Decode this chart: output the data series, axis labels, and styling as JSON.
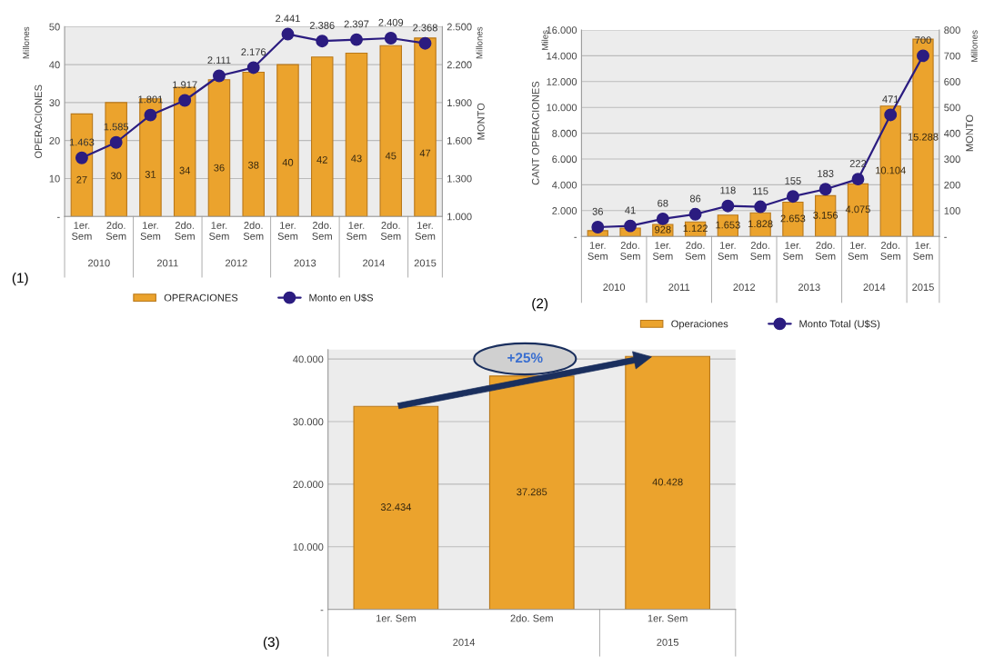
{
  "chart_data": [
    {
      "type": "bar",
      "ylabel": "OPERACIONES",
      "y2label": "MONTO",
      "legend": "bottom",
      "grid": "y",
      "categories": [
        "1er. Sem",
        "2do. Sem",
        "1er. Sem",
        "2do. Sem",
        "1er. Sem",
        "2do. Sem",
        "1er. Sem",
        "2do. Sem",
        "1er. Sem",
        "2do. Sem",
        "1er. Sem"
      ],
      "series": [
        {
          "name": "OPERACIONES",
          "color": "#eba32d",
          "values": [
            27,
            30,
            31,
            34,
            36,
            38,
            40,
            42,
            43,
            45,
            47
          ],
          "value_labels": [
            "27",
            "30",
            "31",
            "34",
            "36",
            "38",
            "40",
            "42",
            "43",
            "45",
            "47"
          ]
        },
        {
          "name": "Monto en U$S",
          "type": "line",
          "axis": "y2",
          "marker": "circle",
          "color": "#2b1c80",
          "values": [
            1463,
            1585,
            1801,
            1917,
            2111,
            2176,
            2441,
            2386,
            2397,
            2409,
            2368
          ],
          "value_labels": [
            "1.463",
            "1.585",
            "1.801",
            "1.917",
            "2.111",
            "2.176",
            "2.441",
            "2.386",
            "2.397",
            "2.409",
            "2.368"
          ]
        }
      ],
      "ylim": [
        0,
        50
      ],
      "yticks": [
        {
          "value": 0,
          "label": "-"
        },
        10,
        20,
        30,
        40,
        50
      ],
      "y2lim": [
        1000,
        2500
      ],
      "y2ticks": [
        {
          "value": 1000,
          "label": "1.000"
        },
        {
          "value": 1300,
          "label": "1.300"
        },
        {
          "value": 1600,
          "label": "1.600"
        },
        {
          "value": 1900,
          "label": "1.900"
        },
        {
          "value": 2200,
          "label": "2.200"
        },
        {
          "value": 2500,
          "label": "2.500"
        }
      ],
      "annotations": [
        "2010",
        "2011",
        "2012",
        "2013",
        "2014",
        "2015",
        "Millones",
        "Millones",
        "(1)"
      ]
    },
    {
      "type": "bar",
      "ylabel": "CANT OPERACIONES",
      "y2label": "MONTO",
      "legend": "bottom",
      "grid": "y",
      "categories": [
        "1er. Sem",
        "2do. Sem",
        "1er. Sem",
        "2do. Sem",
        "1er. Sem",
        "2do. Sem",
        "1er. Sem",
        "2do. Sem",
        "1er. Sem",
        "2do. Sem",
        "1er. Sem"
      ],
      "series": [
        {
          "name": "Operaciones",
          "color": "#eba32d",
          "values": [
            450,
            650,
            928,
            1122,
            1653,
            1828,
            2653,
            3156,
            4075,
            10104,
            15288
          ],
          "value_labels": [
            null,
            null,
            "928",
            "1.122",
            "1.653",
            "1.828",
            "2.653",
            "3.156",
            "4.075",
            "10.104",
            "15.288"
          ]
        },
        {
          "name": "Monto Total (U$S)",
          "type": "line",
          "axis": "y2",
          "marker": "circle",
          "color": "#2b1c80",
          "values": [
            36,
            41,
            68,
            86,
            118,
            115,
            155,
            183,
            222,
            471,
            700
          ],
          "value_labels": [
            "36",
            "41",
            "68",
            "86",
            "118",
            "115",
            "155",
            "183",
            "222",
            "471",
            "700"
          ]
        }
      ],
      "ylim": [
        0,
        16000
      ],
      "yticks": [
        {
          "value": 0,
          "label": "-"
        },
        {
          "value": 2000,
          "label": "2.000"
        },
        {
          "value": 4000,
          "label": "4.000"
        },
        {
          "value": 6000,
          "label": "6.000"
        },
        {
          "value": 8000,
          "label": "8.000"
        },
        {
          "value": 10000,
          "label": "10.000"
        },
        {
          "value": 12000,
          "label": "12.000"
        },
        {
          "value": 14000,
          "label": "14.000"
        },
        {
          "value": 16000,
          "label": "16.000"
        }
      ],
      "y2lim": [
        0,
        800
      ],
      "y2ticks": [
        {
          "value": 0,
          "label": "-"
        },
        100,
        200,
        300,
        400,
        500,
        600,
        700,
        800
      ],
      "annotations": [
        "2010",
        "2011",
        "2012",
        "2013",
        "2014",
        "2015",
        "Miles",
        "Millones",
        "(2)"
      ]
    },
    {
      "type": "bar",
      "grid": "y",
      "categories": [
        "1er. Sem",
        "2do. Sem",
        "1er. Sem"
      ],
      "series": [
        {
          "color": "#eba32d",
          "values": [
            32434,
            37285,
            40428
          ],
          "value_labels": [
            "32.434",
            "37.285",
            "40.428"
          ]
        }
      ],
      "ylim": [
        0,
        41500
      ],
      "yticks": [
        {
          "value": 0,
          "label": "-"
        },
        {
          "value": 10000,
          "label": "10.000"
        },
        {
          "value": 20000,
          "label": "20.000"
        },
        {
          "value": 30000,
          "label": "30.000"
        },
        {
          "value": 40000,
          "label": "40.000"
        }
      ],
      "annotations": [
        "2014",
        "2015",
        "+25%",
        "(3)"
      ]
    }
  ]
}
